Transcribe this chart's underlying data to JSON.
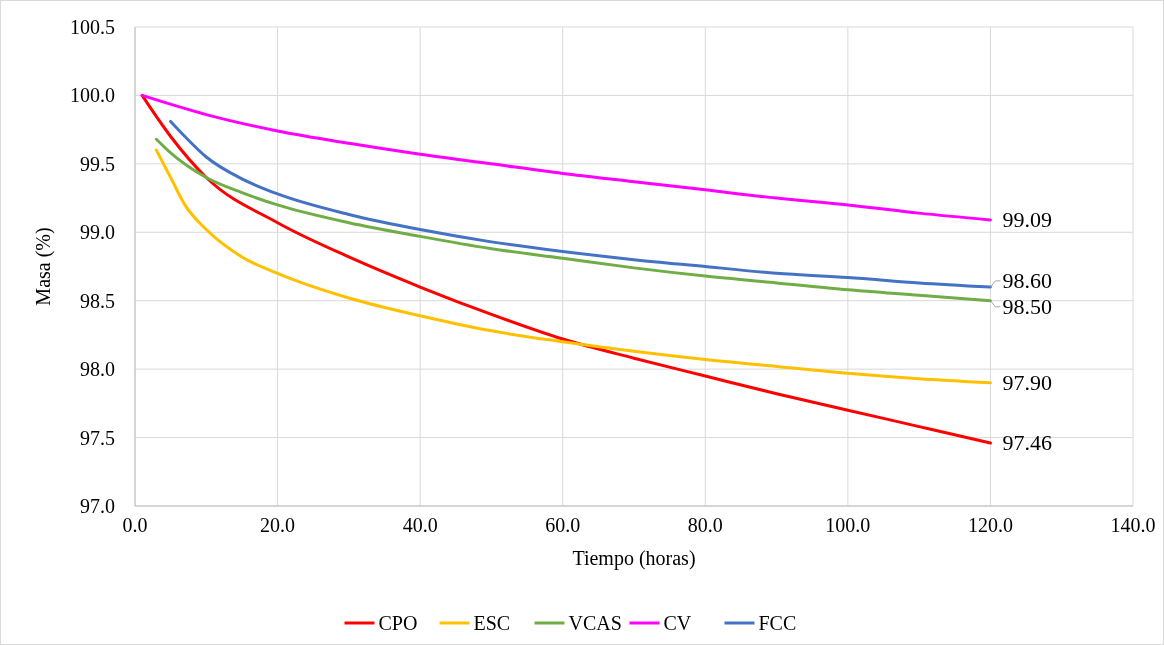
{
  "chart_data": {
    "type": "line",
    "xlabel": "Tiempo (horas)",
    "ylabel": "Masa (%)",
    "xlim": [
      0,
      140
    ],
    "ylim": [
      97,
      100.5
    ],
    "xticks": [
      {
        "value": 0,
        "label": "0.0"
      },
      {
        "value": 20,
        "label": "20.0"
      },
      {
        "value": 40,
        "label": "40.0"
      },
      {
        "value": 60,
        "label": "60.0"
      },
      {
        "value": 80,
        "label": "80.0"
      },
      {
        "value": 100,
        "label": "100.0"
      },
      {
        "value": 120,
        "label": "120.0"
      },
      {
        "value": 140,
        "label": "140.0"
      }
    ],
    "yticks": [
      {
        "value": 97,
        "label": "97.0"
      },
      97.5,
      {
        "value": 98,
        "label": "98.0"
      },
      98.5,
      {
        "value": 99,
        "label": "99.0"
      },
      99.5,
      {
        "value": 100,
        "label": "100.0"
      },
      100.5
    ],
    "grid": true,
    "legend": "bottom",
    "marker": "none",
    "line_style": "solid",
    "series": [
      {
        "name": "CPO",
        "color": "#ff0000",
        "x": [
          1,
          5,
          10,
          20,
          30,
          40,
          50,
          60,
          70,
          80,
          90,
          100,
          110,
          120
        ],
        "values": [
          100.0,
          99.7,
          99.4,
          99.07,
          98.82,
          98.6,
          98.4,
          98.22,
          98.08,
          97.95,
          97.82,
          97.7,
          97.58,
          97.46
        ],
        "value_labels": [
          null,
          null,
          null,
          null,
          null,
          null,
          null,
          null,
          null,
          null,
          null,
          null,
          null,
          "97.46"
        ]
      },
      {
        "name": "ESC",
        "color": "#ffc000",
        "x": [
          3,
          5,
          7,
          10,
          15,
          20,
          30,
          40,
          50,
          60,
          70,
          80,
          90,
          100,
          110,
          120
        ],
        "values": [
          99.6,
          99.4,
          99.2,
          99.02,
          98.82,
          98.7,
          98.52,
          98.39,
          98.28,
          98.2,
          98.13,
          98.07,
          98.02,
          97.97,
          97.93,
          97.9
        ],
        "value_labels": [
          null,
          null,
          null,
          null,
          null,
          null,
          null,
          null,
          null,
          null,
          null,
          null,
          null,
          null,
          null,
          "97.90"
        ]
      },
      {
        "name": "VCAS",
        "color": "#70ad47",
        "x": [
          3,
          5,
          10,
          15,
          20,
          30,
          40,
          50,
          60,
          70,
          80,
          90,
          100,
          110,
          120
        ],
        "values": [
          99.68,
          99.58,
          99.4,
          99.29,
          99.2,
          99.07,
          98.97,
          98.88,
          98.81,
          98.74,
          98.68,
          98.63,
          98.58,
          98.54,
          98.5
        ],
        "value_labels": [
          null,
          null,
          null,
          null,
          null,
          null,
          null,
          null,
          null,
          null,
          null,
          null,
          null,
          null,
          "98.50"
        ]
      },
      {
        "name": "CV",
        "color": "#ff00ff",
        "x": [
          1,
          10,
          20,
          30,
          40,
          50,
          60,
          70,
          80,
          90,
          100,
          110,
          120
        ],
        "values": [
          100.0,
          99.86,
          99.74,
          99.65,
          99.57,
          99.5,
          99.43,
          99.37,
          99.31,
          99.25,
          99.2,
          99.14,
          99.09
        ],
        "value_labels": [
          null,
          null,
          null,
          null,
          null,
          null,
          null,
          null,
          null,
          null,
          null,
          null,
          "99.09"
        ]
      },
      {
        "name": "FCC",
        "color": "#4472c4",
        "x": [
          5,
          7,
          10,
          15,
          20,
          30,
          40,
          50,
          60,
          70,
          80,
          90,
          100,
          110,
          120
        ],
        "values": [
          99.81,
          99.7,
          99.55,
          99.39,
          99.28,
          99.13,
          99.02,
          98.93,
          98.86,
          98.8,
          98.75,
          98.7,
          98.67,
          98.63,
          98.6
        ],
        "value_labels": [
          null,
          null,
          null,
          null,
          null,
          null,
          null,
          null,
          null,
          null,
          null,
          null,
          null,
          null,
          "98.60"
        ]
      }
    ]
  }
}
